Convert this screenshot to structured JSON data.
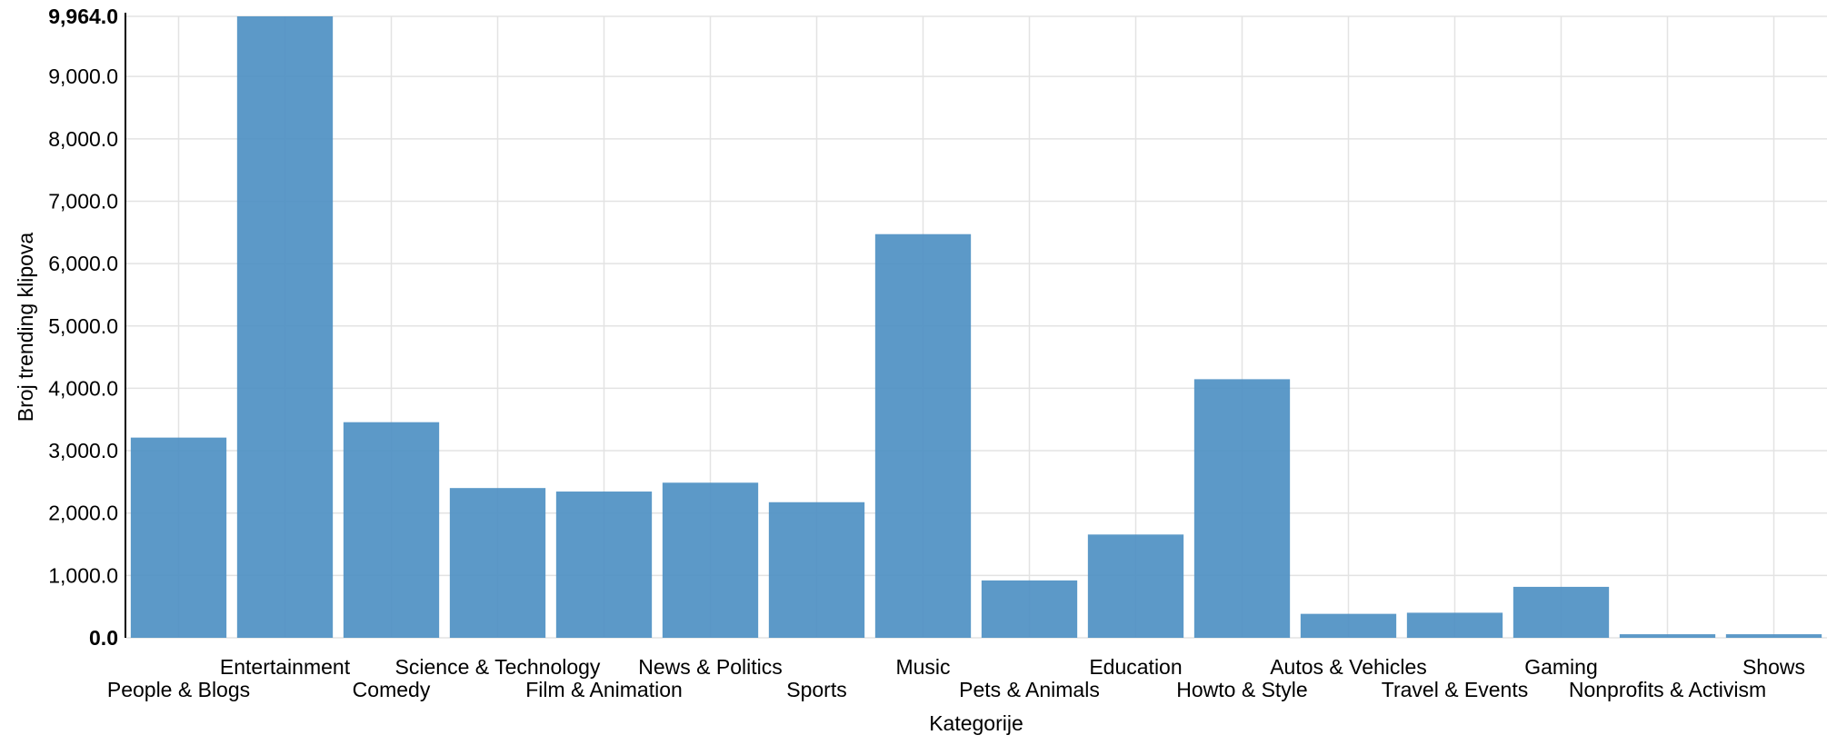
{
  "chart_data": {
    "type": "bar",
    "categories": [
      "People & Blogs",
      "Entertainment",
      "Comedy",
      "Science & Technology",
      "Film & Animation",
      "News & Politics",
      "Sports",
      "Music",
      "Pets & Animals",
      "Education",
      "Howto & Style",
      "Autos & Vehicles",
      "Travel & Events",
      "Gaming",
      "Nonprofits & Activism",
      "Shows"
    ],
    "values": [
      3210,
      9964,
      3457,
      2401,
      2345,
      2487,
      2174,
      6472,
      920,
      1656,
      4146,
      384,
      402,
      817,
      57,
      57
    ],
    "xlabel": "Kategorije",
    "ylabel": "Broj trending klipova",
    "ylim": [
      0,
      9964
    ],
    "y_ticks": [
      "0.0",
      "1,000.0",
      "2,000.0",
      "3,000.0",
      "4,000.0",
      "5,000.0",
      "6,000.0",
      "7,000.0",
      "8,000.0",
      "9,000.0",
      "9,964.0"
    ],
    "bar_color": "#4a8ec2",
    "grid": true
  }
}
